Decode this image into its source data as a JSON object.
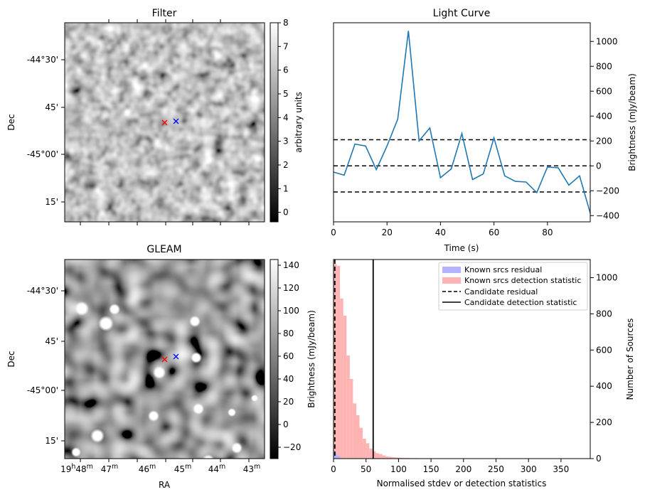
{
  "panels": {
    "filter": {
      "title": "Filter",
      "ylabel": "Dec",
      "yticks": [
        "-44°30'",
        "45'",
        "-45°00'",
        "15'"
      ],
      "colorbar": {
        "label": "arbitrary units",
        "ticks": [
          "8",
          "7",
          "6",
          "5",
          "4",
          "3",
          "2",
          "1",
          "0"
        ],
        "range": [
          -0.4,
          8
        ]
      },
      "markers": [
        {
          "color": "#ff0000",
          "symbol": "x"
        },
        {
          "color": "#0000ff",
          "symbol": "x"
        }
      ]
    },
    "gleam": {
      "title": "GLEAM",
      "ylabel": "Dec",
      "xlabel": "RA",
      "yticks": [
        "-44°30'",
        "45'",
        "-45°00'",
        "15'"
      ],
      "xticks": [
        {
          "main": "19",
          "sup": "h",
          "main2": "48",
          "sup2": "m"
        },
        {
          "main": "47",
          "sup": "m"
        },
        {
          "main": "46",
          "sup": "m"
        },
        {
          "main": "45",
          "sup": "m"
        },
        {
          "main": "44",
          "sup": "m"
        },
        {
          "main": "43",
          "sup": "m"
        }
      ],
      "colorbar": {
        "label": "Brightness (mJy/beam)",
        "ticks": [
          "140",
          "120",
          "100",
          "80",
          "60",
          "40",
          "20",
          "0",
          "−20"
        ],
        "range": [
          -30,
          145
        ]
      },
      "markers": [
        {
          "color": "#ff0000",
          "symbol": "x"
        },
        {
          "color": "#0000ff",
          "symbol": "x"
        }
      ]
    }
  },
  "chart_data": [
    {
      "type": "line",
      "title": "Light Curve",
      "xlabel": "Time (s)",
      "ylabel": "Brightness (mJy/beam)",
      "xlim": [
        0,
        96
      ],
      "ylim": [
        -450,
        1150
      ],
      "xticks": [
        "0",
        "20",
        "40",
        "60",
        "80"
      ],
      "yticks": [
        "1000",
        "800",
        "600",
        "400",
        "200",
        "0",
        "−200",
        "−400"
      ],
      "series": [
        {
          "color": "#1f77b4",
          "x": [
            0,
            4,
            8,
            12,
            16,
            20,
            24,
            28,
            32,
            36,
            40,
            44,
            48,
            52,
            56,
            60,
            64,
            68,
            72,
            76,
            80,
            84,
            88,
            92,
            96
          ],
          "y": [
            -50,
            -75,
            175,
            160,
            -30,
            160,
            375,
            1085,
            200,
            305,
            -95,
            -25,
            260,
            -110,
            -65,
            225,
            -80,
            -125,
            -130,
            -215,
            -10,
            -15,
            -155,
            -80,
            -380
          ]
        }
      ],
      "hlines": [
        {
          "y": 210,
          "style": "dashed",
          "color": "#000000"
        },
        {
          "y": 0,
          "style": "dashed",
          "color": "#000000"
        },
        {
          "y": -210,
          "style": "dashed",
          "color": "#000000"
        }
      ]
    },
    {
      "type": "histogram",
      "xlabel": "Normalised stdev or detection statistics",
      "ylabel": "Number of Sources",
      "xlim": [
        0,
        395
      ],
      "ylim": [
        0,
        1100
      ],
      "xticks": [
        "0",
        "50",
        "100",
        "150",
        "200",
        "250",
        "300",
        "350"
      ],
      "yticks": [
        "1000",
        "800",
        "600",
        "400",
        "200",
        "0"
      ],
      "bin_width": 5,
      "series": [
        {
          "name": "Known srcs residual",
          "color": "#b3b3ff",
          "bin_start": 0,
          "counts": [
            30,
            15
          ]
        },
        {
          "name": "Known srcs detection statistic",
          "color": "#ffb3b3",
          "bin_start": 0,
          "counts": [
            1075,
            1065,
            885,
            790,
            570,
            440,
            305,
            240,
            170,
            110,
            85,
            55,
            40,
            30,
            25,
            18,
            12,
            10,
            8,
            6,
            5,
            4,
            4,
            3,
            3,
            3,
            2,
            2,
            2,
            2,
            2,
            2,
            2,
            2,
            2,
            1,
            1,
            1,
            1,
            1,
            1,
            1,
            1,
            1,
            1,
            0,
            0,
            0,
            0,
            0,
            0,
            0,
            0,
            0,
            0,
            0,
            0,
            0,
            0,
            0,
            0,
            0,
            0,
            0,
            0,
            0,
            0,
            0,
            0,
            0,
            0,
            0,
            0,
            0,
            1
          ]
        }
      ],
      "vlines": [
        {
          "name": "Candidate residual",
          "x": 2,
          "style": "dashed",
          "color": "#000000"
        },
        {
          "name": "Candidate detection statistic",
          "x": 61,
          "style": "solid",
          "color": "#000000"
        }
      ],
      "legend": "top-right"
    }
  ]
}
